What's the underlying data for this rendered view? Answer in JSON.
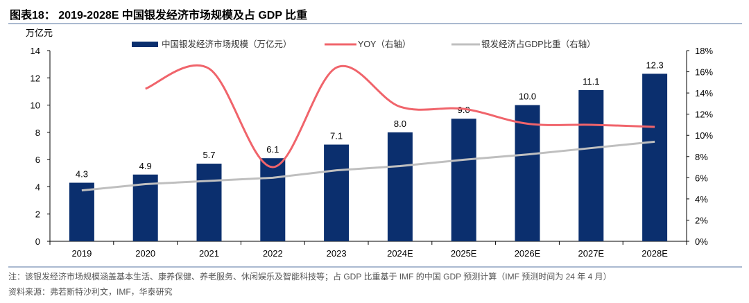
{
  "title": "图表18：  2019-2028E 中国银发经济市场规模及占 GDP 比重",
  "footnote": "注：该银发经济市场规模涵盖基本生活、康养保健、养老服务、休闲娱乐及智能科技等；占 GDP 比重基于 IMF 的中国 GDP 预测计算（IMF 预测时间为 24 年 4 月）",
  "source": "资料来源：弗若斯特沙利文，IMF，华泰研究",
  "chart_data": {
    "type": "bar",
    "ylabel": "万亿元",
    "ylim": [
      0,
      14
    ],
    "yticks": [
      "0",
      "2",
      "4",
      "6",
      "8",
      "10",
      "12",
      "14"
    ],
    "y2lim": [
      0,
      18
    ],
    "y2ticks": [
      "0%",
      "2%",
      "4%",
      "6%",
      "8%",
      "10%",
      "12%",
      "14%",
      "16%",
      "18%"
    ],
    "legend_position": "top",
    "categories": [
      "2019",
      "2020",
      "2021",
      "2022",
      "2023",
      "2024E",
      "2025E",
      "2026E",
      "2027E",
      "2028E"
    ],
    "series": [
      {
        "name": "中国银发经济市场规模（万亿元）",
        "type": "bar",
        "axis": "left",
        "color": "#0b2f6e",
        "values": [
          4.3,
          4.9,
          5.7,
          6.1,
          7.1,
          8.0,
          9.0,
          10.0,
          11.1,
          12.3
        ],
        "labels": [
          "4.3",
          "4.9",
          "5.7",
          "6.1",
          "7.1",
          "8.0",
          "9.0",
          "10.0",
          "11.1",
          "12.3"
        ]
      },
      {
        "name": "YOY（右轴）",
        "type": "line",
        "axis": "right",
        "color": "#f0646b",
        "values": [
          null,
          14.4,
          16.3,
          7.0,
          16.4,
          12.7,
          12.5,
          11.1,
          11.0,
          10.8
        ]
      },
      {
        "name": "银发经济占GDP比重（右轴）",
        "type": "line",
        "axis": "right",
        "color": "#bfbfbf",
        "values": [
          4.8,
          5.4,
          5.7,
          6.0,
          6.7,
          7.1,
          7.7,
          8.2,
          8.8,
          9.4
        ]
      }
    ]
  }
}
